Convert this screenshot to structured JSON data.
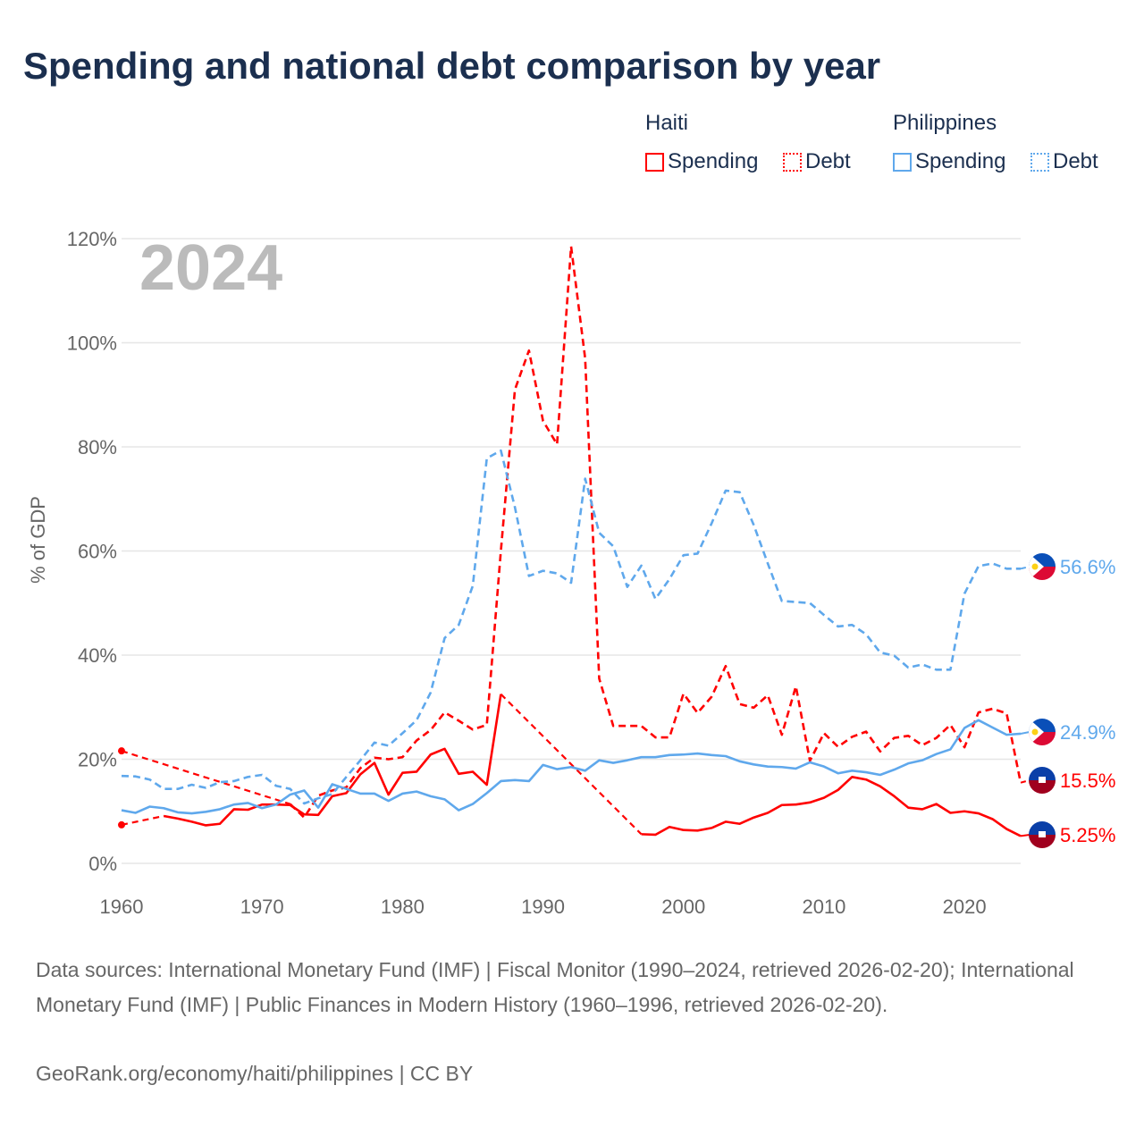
{
  "title": "Spending and national debt comparison by year",
  "legend": {
    "groups": [
      {
        "name": "Haiti",
        "items": [
          "Spending",
          "Debt"
        ]
      },
      {
        "name": "Philippines",
        "items": [
          "Spending",
          "Debt"
        ]
      }
    ]
  },
  "footer": {
    "sources": "Data sources: International Monetary Fund (IMF) | Fiscal Monitor (1990–2024, retrieved 2026-02-20); International Monetary Fund (IMF) | Public Finances in Modern History (1960–1996, retrieved 2026-02-20).",
    "credit": "GeoRank.org/economy/haiti/philippines | CC BY"
  },
  "chart_data": {
    "type": "line",
    "year_label": "2024",
    "ylabel": "% of GDP",
    "xlim": [
      1960,
      2024
    ],
    "ylim": [
      0,
      120
    ],
    "yticks": [
      0,
      20,
      40,
      60,
      80,
      100,
      120
    ],
    "ytick_labels": [
      "0%",
      "20%",
      "40%",
      "60%",
      "80%",
      "100%",
      "120%"
    ],
    "xticks": [
      1960,
      1970,
      1980,
      1990,
      2000,
      2010,
      2020
    ],
    "xtick_labels": [
      "1960",
      "1970",
      "1980",
      "1990",
      "2000",
      "2010",
      "2020"
    ],
    "grid": true,
    "colors": {
      "haiti": "#ff0000",
      "philippines": "#5fa8ec"
    },
    "series": [
      {
        "name": "Haiti Spending",
        "country": "haiti",
        "dash": false,
        "end_label": "5.25%",
        "values": [
          7.4,
          null,
          null,
          9.1,
          8.6,
          8.0,
          7.3,
          7.6,
          10.4,
          10.3,
          11.3,
          11.3,
          11.2,
          9.4,
          9.3,
          12.9,
          13.5,
          17.1,
          19.3,
          13.2,
          17.4,
          17.6,
          20.9,
          22.0,
          17.2,
          17.6,
          15.1,
          32.5,
          null,
          null,
          null,
          null,
          null,
          null,
          null,
          null,
          null,
          5.6,
          5.5,
          7.0,
          6.4,
          6.3,
          6.8,
          8.0,
          7.6,
          8.8,
          9.7,
          11.2,
          11.3,
          11.7,
          12.6,
          14.1,
          16.6,
          16.1,
          14.8,
          12.9,
          10.7,
          10.4,
          11.4,
          9.7,
          10.0,
          9.6,
          8.5,
          6.6,
          5.25
        ]
      },
      {
        "name": "Haiti Debt",
        "country": "haiti",
        "dash": true,
        "end_label": "15.5%",
        "values": [
          21.6,
          null,
          null,
          null,
          null,
          null,
          null,
          null,
          null,
          null,
          null,
          null,
          11.4,
          8.8,
          13.0,
          14.0,
          14.6,
          18.3,
          20.3,
          20.0,
          20.4,
          23.6,
          25.6,
          29.0,
          27.4,
          25.7,
          26.6,
          60.0,
          91.0,
          98.5,
          85.0,
          80.5,
          118.5,
          97.0,
          35.5,
          26.4,
          26.4,
          26.4,
          24.2,
          24.2,
          32.6,
          28.9,
          32.0,
          37.9,
          30.6,
          29.9,
          32.3,
          24.7,
          34.0,
          19.7,
          25.0,
          22.4,
          24.3,
          25.3,
          21.5,
          24.1,
          24.5,
          22.7,
          24.1,
          26.6,
          22.3,
          29.0,
          29.7,
          28.8,
          15.5
        ]
      },
      {
        "name": "Philippines Spending",
        "country": "philippines",
        "dash": false,
        "end_label": "24.9%",
        "values": [
          10.2,
          9.7,
          10.9,
          10.6,
          9.8,
          9.6,
          9.9,
          10.4,
          11.3,
          11.6,
          10.6,
          11.3,
          13.2,
          14.0,
          10.7,
          15.2,
          14.3,
          13.4,
          13.4,
          12.0,
          13.4,
          13.8,
          12.9,
          12.3,
          10.2,
          11.4,
          13.5,
          15.8,
          16.0,
          15.8,
          18.9,
          18.1,
          18.5,
          17.8,
          19.8,
          19.3,
          19.8,
          20.4,
          20.4,
          20.8,
          20.9,
          21.1,
          20.8,
          20.6,
          19.6,
          19.0,
          18.6,
          18.5,
          18.2,
          19.4,
          18.6,
          17.3,
          17.8,
          17.5,
          17.0,
          18.0,
          19.2,
          19.8,
          21.0,
          21.9,
          26.0,
          27.5,
          26.1,
          24.7,
          24.9
        ]
      },
      {
        "name": "Philippines Debt",
        "country": "philippines",
        "dash": true,
        "end_label": "56.6%",
        "values": [
          16.8,
          16.7,
          16.1,
          14.3,
          14.3,
          15.1,
          14.5,
          15.6,
          15.8,
          16.6,
          17.0,
          14.9,
          14.3,
          11.5,
          12.5,
          13.3,
          16.6,
          19.8,
          23.2,
          22.6,
          25.0,
          27.5,
          32.8,
          43.3,
          45.8,
          53.3,
          77.8,
          79.3,
          68.4,
          55.2,
          56.2,
          55.7,
          53.9,
          73.9,
          63.5,
          60.9,
          53.1,
          57.2,
          50.8,
          54.6,
          59.2,
          59.5,
          65.3,
          71.6,
          71.3,
          65.0,
          57.6,
          50.4,
          50.2,
          50.0,
          47.7,
          45.5,
          45.8,
          44.0,
          40.5,
          39.9,
          37.6,
          38.2,
          37.2,
          37.2,
          51.8,
          57.1,
          57.6,
          56.6,
          56.6
        ]
      }
    ]
  }
}
